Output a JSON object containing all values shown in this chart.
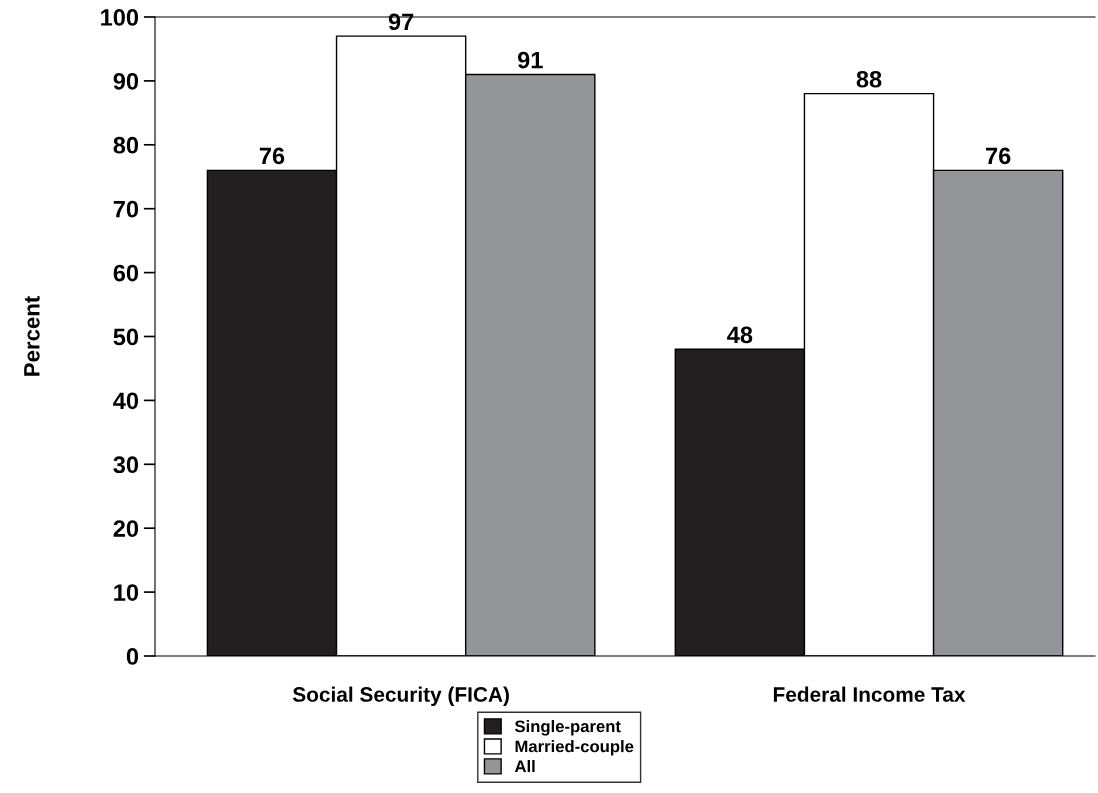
{
  "chart_data": {
    "type": "bar",
    "ylabel": "Percent",
    "categories": [
      "Social Security (FICA)",
      "Federal Income Tax"
    ],
    "series": [
      {
        "name": "Single-parent",
        "color": "#231f20",
        "values": [
          76,
          48
        ]
      },
      {
        "name": "Married-couple",
        "color": "#ffffff",
        "values": [
          97,
          88
        ]
      },
      {
        "name": "All",
        "color": "#939598",
        "values": [
          91,
          76
        ]
      }
    ],
    "ylim": [
      0,
      100
    ],
    "yticks": [
      0,
      10,
      20,
      30,
      40,
      50,
      60,
      70,
      80,
      90,
      100
    ],
    "data_labels": true,
    "grid": false,
    "legend": "bottom"
  }
}
